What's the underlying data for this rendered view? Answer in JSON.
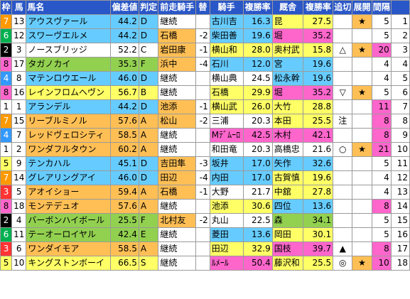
{
  "headers": [
    "枠",
    "馬",
    "馬名",
    "偏差値",
    "判定",
    "前走騎手",
    "替",
    "騎手",
    "複勝率",
    "厩舎",
    "複勝率",
    "追切",
    "展開",
    "間隔",
    ""
  ],
  "colors": {
    "header_bg": "#2a57c8",
    "green": "#92d050",
    "yellow": "#ffff66",
    "orange": "#ffbf55",
    "cyan": "#66ccff",
    "pink": "#ff66cc",
    "white": "#ffffff"
  },
  "rows": [
    {
      "waku": "7",
      "uma": "13",
      "name": "アウスヴァール",
      "dev": "44.2",
      "judge": "D",
      "prev": "継続",
      "swap": "",
      "jockey": "古川吉",
      "jrate": "16.3",
      "stable": "昆",
      "srate": "27.5",
      "oikiri": "",
      "tenkai": "★",
      "kankaku": "5",
      "last": "1",
      "c": {
        "waku": "#ff9900",
        "name": "#66ccff",
        "dev": "#66ccff",
        "prev": "#ffffff",
        "swap": "#ffffff",
        "jockey": "#66ccff",
        "stable": "#ffff66",
        "tenkai": "#ffbf55",
        "kankaku": "#ffffff"
      }
    },
    {
      "waku": "6",
      "uma": "12",
      "name": "スワーヴエルメ",
      "dev": "44.2",
      "judge": "D",
      "prev": "石橋",
      "swap": "-2",
      "jockey": "柴田善",
      "jrate": "19.6",
      "stable": "堀",
      "srate": "35.2",
      "oikiri": "",
      "tenkai": "",
      "kankaku": "5",
      "last": "2",
      "c": {
        "waku": "#00b050",
        "name": "#66ccff",
        "dev": "#66ccff",
        "prev": "#ffbf55",
        "swap": "#ffffff",
        "jockey": "#66ccff",
        "stable": "#ff66cc",
        "tenkai": "#ffffff",
        "kankaku": "#ffffff"
      }
    },
    {
      "waku": "2",
      "uma": "3",
      "name": "ノースブリッジ",
      "dev": "52.2",
      "judge": "C",
      "prev": "岩田康",
      "swap": "-1",
      "jockey": "横山和",
      "jrate": "28.0",
      "stable": "奥村武",
      "srate": "15.8",
      "oikiri": "△",
      "tenkai": "★",
      "kankaku": "20",
      "last": "3",
      "c": {
        "waku": "#000000",
        "name": "#ffffff",
        "dev": "#ffffff",
        "prev": "#ffbf55",
        "swap": "#ffffff",
        "jockey": "#ffff66",
        "stable": "#ffff66",
        "tenkai": "#ffbf55",
        "kankaku": "#ff66cc"
      }
    },
    {
      "waku": "8",
      "uma": "17",
      "name": "タガノカイ",
      "dev": "35.3",
      "judge": "F",
      "prev": "浜中",
      "swap": "-4",
      "jockey": "石川",
      "jrate": "12.0",
      "stable": "宮",
      "srate": "19.6",
      "oikiri": "",
      "tenkai": "",
      "kankaku": "4",
      "last": "4",
      "c": {
        "waku": "#ff66cc",
        "name": "#92d050",
        "dev": "#92d050",
        "prev": "#ffbf55",
        "swap": "#ffffff",
        "jockey": "#66ccff",
        "stable": "#66ccff",
        "tenkai": "#ffffff",
        "kankaku": "#ffffff"
      }
    },
    {
      "waku": "4",
      "uma": "8",
      "name": "マテンロウエール",
      "dev": "46.0",
      "judge": "D",
      "prev": "継続",
      "swap": "",
      "jockey": "横山典",
      "jrate": "24.5",
      "stable": "松永幹",
      "srate": "19.6",
      "oikiri": "",
      "tenkai": "",
      "kankaku": "4",
      "last": "5",
      "c": {
        "waku": "#3399ff",
        "name": "#66ccff",
        "dev": "#66ccff",
        "prev": "#ffffff",
        "swap": "#ffffff",
        "jockey": "#ffffff",
        "stable": "#66ccff",
        "tenkai": "#ffffff",
        "kankaku": "#ffffff"
      }
    },
    {
      "waku": "8",
      "uma": "16",
      "name": "レインフロムヘヴン",
      "dev": "56.7",
      "judge": "B",
      "prev": "継続",
      "swap": "",
      "jockey": "石橋",
      "jrate": "29.9",
      "stable": "堀",
      "srate": "35.2",
      "oikiri": "▽",
      "tenkai": "★",
      "kankaku": "5",
      "last": "6",
      "c": {
        "waku": "#ff66cc",
        "name": "#ffff66",
        "dev": "#ffff66",
        "prev": "#ffffff",
        "swap": "#ffffff",
        "jockey": "#ffff66",
        "stable": "#ff66cc",
        "tenkai": "#ffbf55",
        "kankaku": "#ffffff"
      }
    },
    {
      "waku": "1",
      "uma": "1",
      "name": "アランデル",
      "dev": "44.2",
      "judge": "D",
      "prev": "池添",
      "swap": "-1",
      "jockey": "横山武",
      "jrate": "26.0",
      "stable": "大竹",
      "srate": "28.8",
      "oikiri": "",
      "tenkai": "",
      "kankaku": "11",
      "last": "7",
      "c": {
        "waku": "#ffffff",
        "name": "#66ccff",
        "dev": "#66ccff",
        "prev": "#ffbf55",
        "swap": "#ffffff",
        "jockey": "#ffff66",
        "stable": "#ffff66",
        "tenkai": "#ffffff",
        "kankaku": "#ff66cc"
      }
    },
    {
      "waku": "7",
      "uma": "15",
      "name": "リーブルミノル",
      "dev": "57.6",
      "judge": "A",
      "prev": "松山",
      "swap": "-2",
      "jockey": "三浦",
      "jrate": "20.3",
      "stable": "本田",
      "srate": "25.5",
      "oikiri": "注",
      "tenkai": "",
      "kankaku": "8",
      "last": "8",
      "c": {
        "waku": "#ff9900",
        "name": "#ffbf55",
        "dev": "#ffbf55",
        "prev": "#ffbf55",
        "swap": "#ffffff",
        "jockey": "#ffffff",
        "stable": "#ffff66",
        "tenkai": "#ffffff",
        "kankaku": "#ff66cc"
      }
    },
    {
      "waku": "4",
      "uma": "7",
      "name": "レッドヴェロシティ",
      "dev": "58.5",
      "judge": "A",
      "prev": "継続",
      "swap": "",
      "jockey": "Mﾃﾞﾑｰﾛ",
      "jrate": "42.5",
      "stable": "木村",
      "srate": "42.1",
      "oikiri": "",
      "tenkai": "",
      "kankaku": "8",
      "last": "9",
      "c": {
        "waku": "#3399ff",
        "name": "#ffbf55",
        "dev": "#ffbf55",
        "prev": "#ffffff",
        "swap": "#ffffff",
        "jockey": "#ff66cc",
        "stable": "#ff66cc",
        "tenkai": "#ffffff",
        "kankaku": "#ff66cc"
      }
    },
    {
      "waku": "1",
      "uma": "2",
      "name": "ワンダフルタウン",
      "dev": "60.2",
      "judge": "A",
      "prev": "継続",
      "swap": "",
      "jockey": "和田竜",
      "jrate": "20.3",
      "stable": "高橋忠",
      "srate": "21.6",
      "oikiri": "○",
      "tenkai": "★",
      "kankaku": "21",
      "last": "10",
      "c": {
        "waku": "#ffffff",
        "name": "#ffbf55",
        "dev": "#ffbf55",
        "prev": "#ffffff",
        "swap": "#ffffff",
        "jockey": "#ffffff",
        "stable": "#ffffff",
        "tenkai": "#ffbf55",
        "kankaku": "#ff66cc"
      }
    },
    {
      "waku": "5",
      "uma": "9",
      "name": "テンカハル",
      "dev": "45.1",
      "judge": "D",
      "prev": "吉田隼",
      "swap": "-3",
      "jockey": "坂井",
      "jrate": "17.0",
      "stable": "矢作",
      "srate": "32.6",
      "oikiri": "",
      "tenkai": "",
      "kankaku": "5",
      "last": "11",
      "c": {
        "waku": "#ffff66",
        "name": "#66ccff",
        "dev": "#66ccff",
        "prev": "#ffbf55",
        "swap": "#ffffff",
        "jockey": "#66ccff",
        "stable": "#66ccff",
        "tenkai": "#ffffff",
        "kankaku": "#ffffff"
      }
    },
    {
      "waku": "7",
      "uma": "14",
      "name": "グレアリングアイ",
      "dev": "46.0",
      "judge": "D",
      "prev": "田辺",
      "swap": "-4",
      "jockey": "内田",
      "jrate": "17.0",
      "stable": "古賀慎",
      "srate": "19.6",
      "oikiri": "",
      "tenkai": "",
      "kankaku": "4",
      "last": "12",
      "c": {
        "waku": "#ff9900",
        "name": "#66ccff",
        "dev": "#66ccff",
        "prev": "#ffbf55",
        "swap": "#ffffff",
        "jockey": "#66ccff",
        "stable": "#ffff66",
        "tenkai": "#ffffff",
        "kankaku": "#ffffff"
      }
    },
    {
      "waku": "3",
      "uma": "5",
      "name": "アオイショー",
      "dev": "59.4",
      "judge": "A",
      "prev": "石橋",
      "swap": "-1",
      "jockey": "大野",
      "jrate": "21.7",
      "stable": "中舘",
      "srate": "27.8",
      "oikiri": "",
      "tenkai": "",
      "kankaku": "4",
      "last": "13",
      "c": {
        "waku": "#ff3333",
        "name": "#ffbf55",
        "dev": "#ffbf55",
        "prev": "#ffbf55",
        "swap": "#ffffff",
        "jockey": "#ffffff",
        "stable": "#ffff66",
        "tenkai": "#ffffff",
        "kankaku": "#ffffff"
      }
    },
    {
      "waku": "8",
      "uma": "18",
      "name": "モンテデュオ",
      "dev": "57.6",
      "judge": "A",
      "prev": "継続",
      "swap": "",
      "jockey": "池添",
      "jrate": "30.6",
      "stable": "四位",
      "srate": "13.6",
      "oikiri": "",
      "tenkai": "",
      "kankaku": "8",
      "last": "14",
      "c": {
        "waku": "#ff66cc",
        "name": "#ffbf55",
        "dev": "#ffbf55",
        "prev": "#ffffff",
        "swap": "#ffffff",
        "jockey": "#ffff66",
        "stable": "#66ccff",
        "tenkai": "#ffffff",
        "kankaku": "#ff66cc"
      }
    },
    {
      "waku": "2",
      "uma": "4",
      "name": "バーボンハイボール",
      "dev": "25.5",
      "judge": "F",
      "prev": "北村友",
      "swap": "-2",
      "jockey": "丸山",
      "jrate": "22.5",
      "stable": "森",
      "srate": "34.1",
      "oikiri": "",
      "tenkai": "",
      "kankaku": "5",
      "last": "15",
      "c": {
        "waku": "#000000",
        "name": "#92d050",
        "dev": "#92d050",
        "prev": "#ffbf55",
        "swap": "#ffffff",
        "jockey": "#ffffff",
        "stable": "#92d050",
        "tenkai": "#ffffff",
        "kankaku": "#ffffff"
      }
    },
    {
      "waku": "6",
      "uma": "11",
      "name": "テーオーロイヤル",
      "dev": "42.4",
      "judge": "E",
      "prev": "継続",
      "swap": "",
      "jockey": "菱田",
      "jrate": "13.6",
      "stable": "岡田",
      "srate": "30.1",
      "oikiri": "",
      "tenkai": "",
      "kankaku": "5",
      "last": "16",
      "c": {
        "waku": "#00b050",
        "name": "#92d050",
        "dev": "#92d050",
        "prev": "#ffffff",
        "swap": "#ffffff",
        "jockey": "#66ccff",
        "stable": "#ffff66",
        "tenkai": "#ffffff",
        "kankaku": "#ffffff"
      }
    },
    {
      "waku": "3",
      "uma": "6",
      "name": "ワンダイモア",
      "dev": "58.5",
      "judge": "A",
      "prev": "継続",
      "swap": "",
      "jockey": "田辺",
      "jrate": "32.9",
      "stable": "国枝",
      "srate": "39.7",
      "oikiri": "▲",
      "tenkai": "",
      "kankaku": "8",
      "last": "17",
      "c": {
        "waku": "#ff3333",
        "name": "#ffbf55",
        "dev": "#ffbf55",
        "prev": "#ffffff",
        "swap": "#ffffff",
        "jockey": "#ffff66",
        "stable": "#ff66cc",
        "tenkai": "#ffffff",
        "kankaku": "#ff66cc"
      }
    },
    {
      "waku": "5",
      "uma": "10",
      "name": "キングストンボーイ",
      "dev": "66.5",
      "judge": "S",
      "prev": "継続",
      "swap": "",
      "jockey": "ﾙﾒｰﾙ",
      "jrate": "50.4",
      "stable": "藤沢和",
      "srate": "25.5",
      "oikiri": "◎",
      "tenkai": "★",
      "kankaku": "10",
      "last": "18",
      "c": {
        "waku": "#ffff66",
        "name": "#ffff66",
        "dev": "#ffff66",
        "prev": "#ffffff",
        "swap": "#ffffff",
        "jockey": "#ff66cc",
        "stable": "#ffff66",
        "tenkai": "#ffbf55",
        "kankaku": "#ff66cc"
      }
    }
  ]
}
